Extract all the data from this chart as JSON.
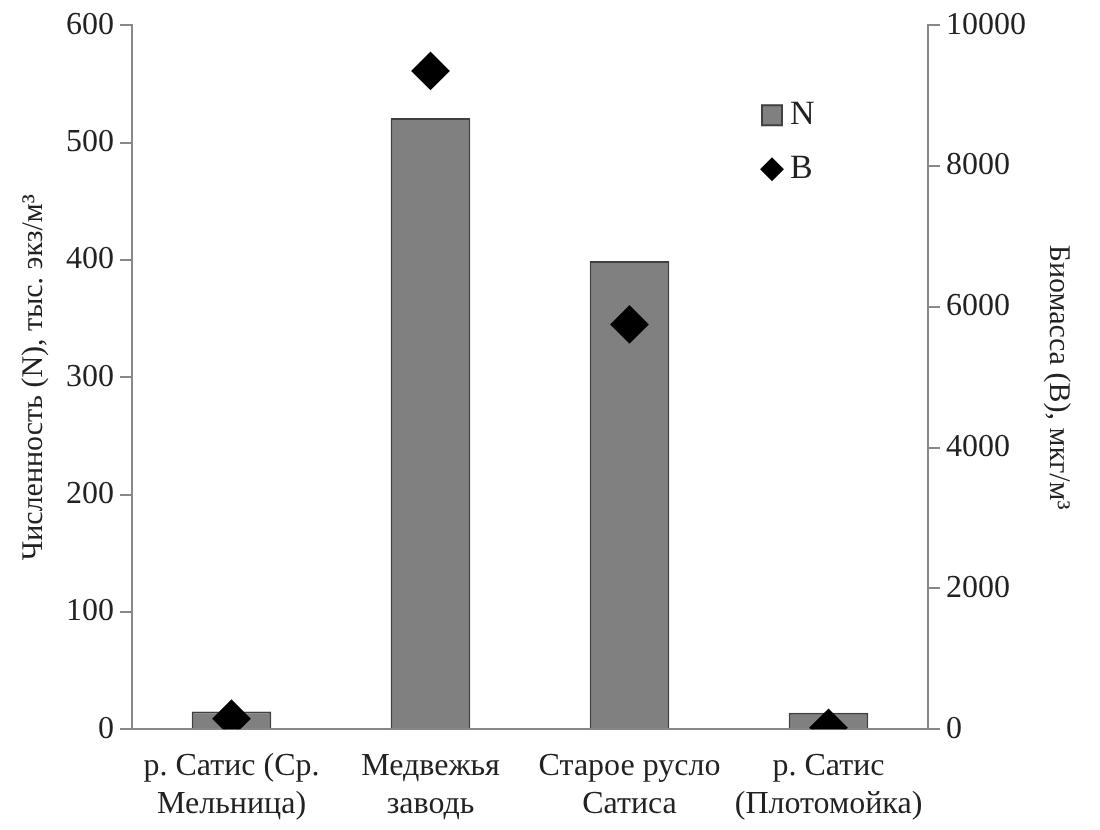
{
  "chart_data": {
    "type": "bar",
    "ylabel": "Численность (N), тыс. экз/м³",
    "y2label": "Биомасса (B), мкг/м³",
    "categories": [
      "р. Сатис (Ср. Мельница)",
      "Медвежья заводь",
      "Старое русло Сатиса",
      "р. Сатис (Плотомойка)"
    ],
    "series": [
      {
        "name": "N",
        "color": "#808080",
        "values": [
          15,
          521,
          399,
          14
        ]
      },
      {
        "name": "B",
        "type": "scatter",
        "axis": "y2",
        "marker": "diamond",
        "color": "#000000",
        "values": [
          150,
          9350,
          5750,
          20
        ]
      }
    ],
    "ylim": [
      0,
      600
    ],
    "yticks": [
      0,
      100,
      200,
      300,
      400,
      500,
      600
    ],
    "y2lim": [
      0,
      10000
    ],
    "y2ticks": [
      0,
      2000,
      4000,
      6000,
      8000,
      10000
    ],
    "grid": false,
    "legend": "top right"
  }
}
